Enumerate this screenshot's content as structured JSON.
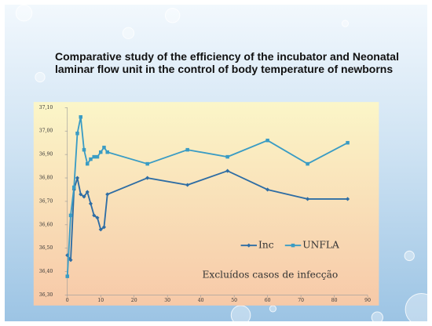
{
  "chart_data": {
    "type": "line",
    "title": "Comparative study of the efficiency of the incubator and Neonatal laminar flow unit in the control of body temperature of newborns",
    "x": [
      0,
      1,
      2,
      3,
      4,
      5,
      6,
      7,
      8,
      9,
      10,
      11,
      12,
      24,
      36,
      48,
      60,
      72,
      84
    ],
    "series": [
      {
        "name": "Inc",
        "color": "#2e6da4",
        "values": [
          36.47,
          36.45,
          36.75,
          36.8,
          36.73,
          36.72,
          36.74,
          36.69,
          36.64,
          36.63,
          36.58,
          36.59,
          36.73,
          36.8,
          36.77,
          36.83,
          36.75,
          36.71,
          36.71
        ]
      },
      {
        "name": "UNFLA",
        "color": "#3a9cc4",
        "values": [
          36.38,
          36.64,
          36.76,
          36.99,
          37.06,
          36.92,
          36.86,
          36.88,
          36.89,
          36.89,
          36.91,
          36.93,
          36.91,
          36.86,
          36.92,
          36.89,
          36.96,
          36.86,
          36.95
        ]
      }
    ],
    "xlim": [
      0,
      90
    ],
    "xticks": [
      0,
      10,
      20,
      30,
      40,
      50,
      60,
      70,
      80,
      90
    ],
    "ylim": [
      36.3,
      37.1
    ],
    "yticks": [
      {
        "value": 36.3,
        "label": "36,30"
      },
      {
        "value": 36.4,
        "label": "36,40"
      },
      {
        "value": 36.5,
        "label": "36,50"
      },
      {
        "value": 36.6,
        "label": "36,60"
      },
      {
        "value": 36.7,
        "label": "36,70"
      },
      {
        "value": 36.8,
        "label": "36,80"
      },
      {
        "value": 36.9,
        "label": "36,90"
      },
      {
        "value": 37.0,
        "label": "37,00"
      },
      {
        "value": 37.1,
        "label": "37,10"
      }
    ],
    "annotation": "Excluídos casos de infecção",
    "grid": false
  }
}
